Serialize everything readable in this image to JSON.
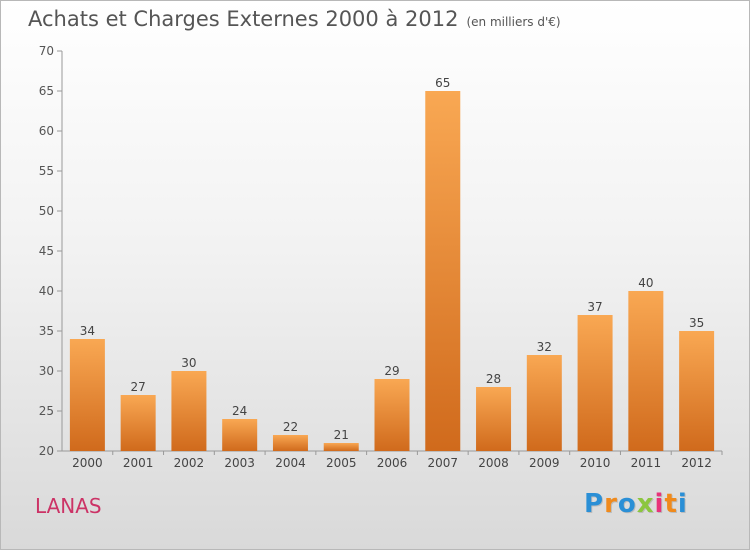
{
  "title": "Achats et Charges Externes 2000 à 2012",
  "unit": "(en milliers d'€)",
  "place": "LANAS",
  "logo": {
    "text": "Proxiti",
    "letters": [
      {
        "ch": "P",
        "color": "#2a8fd6"
      },
      {
        "ch": "r",
        "color": "#f08a1c"
      },
      {
        "ch": "o",
        "color": "#2a8fd6"
      },
      {
        "ch": "x",
        "color": "#8cc63f"
      },
      {
        "ch": "i",
        "color": "#e8337a"
      },
      {
        "ch": "t",
        "color": "#f08a1c"
      },
      {
        "ch": "i",
        "color": "#2a8fd6"
      }
    ]
  },
  "chart_data": {
    "type": "bar",
    "categories": [
      "2000",
      "2001",
      "2002",
      "2003",
      "2004",
      "2005",
      "2006",
      "2007",
      "2008",
      "2009",
      "2010",
      "2011",
      "2012"
    ],
    "values": [
      34,
      27,
      30,
      24,
      22,
      21,
      29,
      65,
      28,
      32,
      37,
      40,
      35
    ],
    "ylim": [
      20,
      70
    ],
    "yticks": [
      20,
      25,
      30,
      35,
      40,
      45,
      50,
      55,
      60,
      65,
      70
    ],
    "grid": false,
    "bar_color_light": "#f7a54c",
    "bar_color_dark": "#d2691e"
  }
}
